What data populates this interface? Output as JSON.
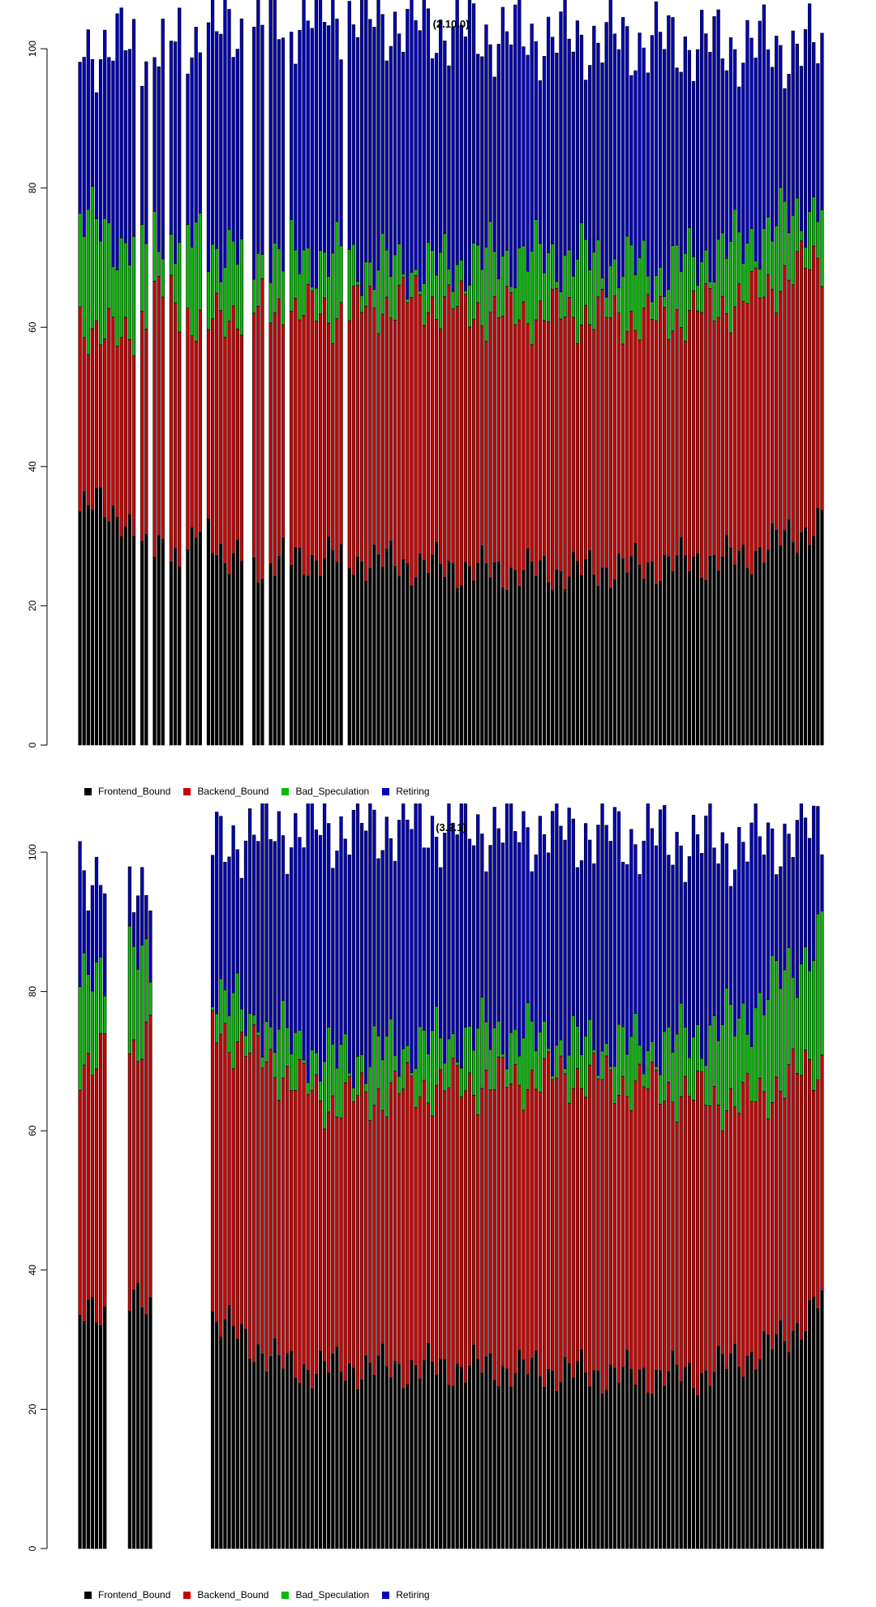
{
  "colors": {
    "Frontend_Bound": "#000000",
    "Backend_Bound": "#cc0000",
    "Bad_Speculation": "#00bb00",
    "Retiring": "#0000bb",
    "bar_edge": "#000000"
  },
  "legend": [
    "Frontend_Bound",
    "Backend_Bound",
    "Bad_Speculation",
    "Retiring"
  ],
  "chart_data": [
    {
      "type": "bar",
      "stacked": true,
      "title": "(2.10.0)",
      "xlabel": "",
      "ylabel": "",
      "ylim": [
        0,
        107
      ],
      "yticks": [
        0,
        20,
        40,
        60,
        80,
        100
      ],
      "series_names": [
        "Frontend_Bound",
        "Backend_Bound",
        "Bad_Speculation",
        "Retiring"
      ],
      "n_bars": 180,
      "missing_bars": [
        14,
        17,
        21,
        25,
        30,
        40,
        41,
        45,
        50,
        64
      ],
      "frontend_anchors": [
        [
          0,
          33
        ],
        [
          5,
          35
        ],
        [
          10,
          33
        ],
        [
          15,
          27
        ],
        [
          20,
          30
        ],
        [
          25,
          24
        ],
        [
          30,
          34
        ],
        [
          35,
          26
        ],
        [
          40,
          26
        ],
        [
          60,
          27
        ],
        [
          80,
          26
        ],
        [
          100,
          25
        ],
        [
          120,
          25
        ],
        [
          140,
          26
        ],
        [
          160,
          27
        ],
        [
          179,
          32
        ]
      ],
      "backend_anchors": [
        [
          0,
          61
        ],
        [
          10,
          58
        ],
        [
          20,
          65
        ],
        [
          30,
          60
        ],
        [
          40,
          63
        ],
        [
          60,
          62
        ],
        [
          80,
          64
        ],
        [
          100,
          62
        ],
        [
          120,
          62
        ],
        [
          140,
          61
        ],
        [
          160,
          64
        ],
        [
          179,
          70
        ]
      ],
      "badspec_anchors": [
        [
          0,
          76
        ],
        [
          10,
          72
        ],
        [
          20,
          74
        ],
        [
          40,
          70
        ],
        [
          60,
          70
        ],
        [
          80,
          68
        ],
        [
          100,
          70
        ],
        [
          120,
          70
        ],
        [
          140,
          68
        ],
        [
          160,
          72
        ],
        [
          179,
          78
        ]
      ],
      "total_anchors": [
        [
          0,
          100
        ],
        [
          20,
          101
        ],
        [
          60,
          105
        ],
        [
          100,
          102
        ],
        [
          140,
          101
        ],
        [
          179,
          100
        ]
      ]
    },
    {
      "type": "bar",
      "stacked": true,
      "title": "(3.2.1)",
      "xlabel": "",
      "ylabel": "",
      "ylim": [
        0,
        107
      ],
      "yticks": [
        0,
        20,
        40,
        60,
        80,
        100
      ],
      "series_names": [
        "Frontend_Bound",
        "Backend_Bound",
        "Bad_Speculation",
        "Retiring"
      ],
      "n_bars": 180,
      "missing_bars": [
        7,
        8,
        9,
        10,
        11,
        18,
        19,
        20,
        21,
        22,
        23,
        24,
        25,
        26,
        27,
        28,
        29,
        30,
        31
      ],
      "frontend_anchors": [
        [
          0,
          33
        ],
        [
          6,
          34
        ],
        [
          12,
          35
        ],
        [
          20,
          35
        ],
        [
          30,
          34
        ],
        [
          40,
          30
        ],
        [
          50,
          26
        ],
        [
          70,
          26
        ],
        [
          100,
          26
        ],
        [
          130,
          25
        ],
        [
          150,
          25
        ],
        [
          170,
          30
        ],
        [
          179,
          36
        ]
      ],
      "backend_anchors": [
        [
          0,
          70
        ],
        [
          12,
          72
        ],
        [
          20,
          75
        ],
        [
          30,
          76
        ],
        [
          40,
          72
        ],
        [
          60,
          64
        ],
        [
          80,
          66
        ],
        [
          100,
          67
        ],
        [
          120,
          68
        ],
        [
          140,
          66
        ],
        [
          160,
          64
        ],
        [
          179,
          70
        ]
      ],
      "badspec_anchors": [
        [
          0,
          80
        ],
        [
          12,
          85
        ],
        [
          20,
          82
        ],
        [
          30,
          82
        ],
        [
          40,
          76
        ],
        [
          60,
          70
        ],
        [
          80,
          72
        ],
        [
          100,
          74
        ],
        [
          120,
          72
        ],
        [
          140,
          72
        ],
        [
          160,
          76
        ],
        [
          179,
          88
        ]
      ],
      "total_anchors": [
        [
          0,
          98
        ],
        [
          20,
          96
        ],
        [
          40,
          103
        ],
        [
          80,
          104
        ],
        [
          120,
          103
        ],
        [
          160,
          101
        ],
        [
          179,
          104
        ]
      ]
    }
  ]
}
